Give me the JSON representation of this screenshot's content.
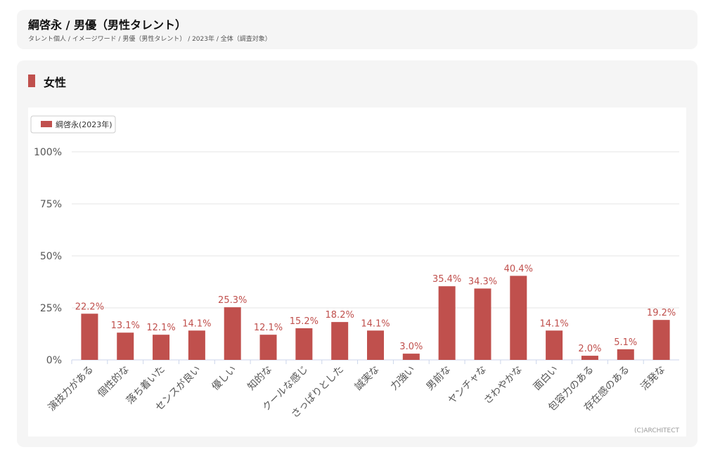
{
  "header": {
    "title": "綱啓永 / 男優（男性タレント）",
    "breadcrumb": "タレント個人 / イメージワード / 男優（男性タレント） / 2023年 / 全体（調査対象）"
  },
  "section": {
    "title": "女性"
  },
  "chart_data": {
    "type": "bar",
    "categories": [
      "演技力がある",
      "個性的な",
      "落ち着いた",
      "センスが良い",
      "優しい",
      "知的な",
      "クールな感じ",
      "さっぱりとした",
      "誠実な",
      "力強い",
      "男前な",
      "ヤンチャな",
      "さわやかな",
      "面白い",
      "包容力のある",
      "存在感のある",
      "活発な"
    ],
    "series": [
      {
        "name": "綱啓永(2023年)",
        "values": [
          22.2,
          13.1,
          12.1,
          14.1,
          25.3,
          12.1,
          15.2,
          18.2,
          14.1,
          3.0,
          35.4,
          34.3,
          40.4,
          14.1,
          2.0,
          5.1,
          19.2
        ]
      }
    ],
    "yticks": [
      "0%",
      "25%",
      "50%",
      "75%",
      "100%"
    ],
    "ylim": [
      0,
      100
    ],
    "legend": "top-left",
    "color": "#c0504d",
    "credit": "(C)ARCHITECT"
  }
}
